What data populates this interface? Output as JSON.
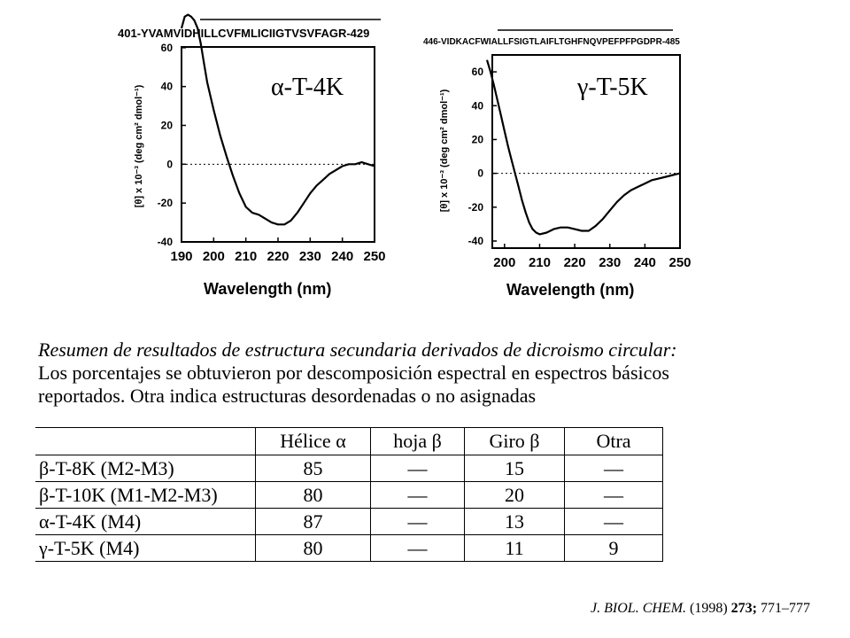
{
  "chart_data": [
    {
      "type": "line",
      "sequence": "401-YVAMVIDHILLCVFMLICIIGTVSVFAGR-429",
      "label": "α-T-4K",
      "xlabel": "Wavelength (nm)",
      "ylabel": "[θ] x 10⁻³ (deg cm² dmol⁻¹)",
      "xlim": [
        190,
        250
      ],
      "ylim": [
        -40,
        80
      ],
      "xticks": [
        190,
        200,
        210,
        220,
        230,
        240,
        250
      ],
      "yticks": [
        -40,
        -20,
        0,
        20,
        40,
        60
      ],
      "x": [
        190,
        191,
        192,
        193,
        194,
        195,
        196,
        197,
        198,
        200,
        202,
        204,
        206,
        208,
        210,
        212,
        214,
        216,
        218,
        220,
        222,
        224,
        226,
        228,
        230,
        232,
        234,
        236,
        238,
        240,
        242,
        244,
        246,
        248,
        250
      ],
      "y": [
        70,
        76,
        77,
        76,
        74,
        70,
        62,
        52,
        42,
        28,
        15,
        4,
        -6,
        -15,
        -22,
        -25,
        -26,
        -28,
        -30,
        -31,
        -31,
        -29,
        -25,
        -20,
        -15,
        -11,
        -8,
        -5,
        -3,
        -1,
        0,
        0,
        1,
        0,
        -1
      ]
    },
    {
      "type": "line",
      "sequence": "446-VIDKACFWIALLFSIGTLAIFLTGHFNQVPEFPFPGDPR-485",
      "label": "γ-T-5K",
      "xlabel": "Wavelength (nm)",
      "ylabel": "[θ] x 10⁻³ (deg cm² dmol⁻¹)",
      "xlim": [
        195,
        250
      ],
      "ylim": [
        -40,
        70
      ],
      "xticks": [
        200,
        210,
        220,
        230,
        240,
        250
      ],
      "yticks": [
        -40,
        -20,
        0,
        20,
        40,
        60
      ],
      "x": [
        195,
        196,
        197,
        198,
        199,
        200,
        201,
        202,
        203,
        204,
        205,
        206,
        207,
        208,
        209,
        210,
        212,
        214,
        216,
        218,
        220,
        222,
        224,
        226,
        228,
        230,
        232,
        234,
        236,
        238,
        240,
        242,
        244,
        246,
        248,
        250
      ],
      "y": [
        67,
        60,
        52,
        43,
        34,
        25,
        16,
        8,
        0,
        -8,
        -16,
        -23,
        -29,
        -33,
        -35,
        -36,
        -35,
        -33,
        -32,
        -32,
        -33,
        -34,
        -34,
        -31,
        -27,
        -22,
        -17,
        -13,
        -10,
        -8,
        -6,
        -4,
        -3,
        -2,
        -1,
        0
      ]
    }
  ],
  "summary": {
    "line1": "Resumen de resultados de estructura secundaria derivados de dicroismo circular:",
    "line2": "Los porcentajes se obtuvieron por descomposición espectral en espectros básicos",
    "line3": "reportados. Otra indica estructuras desordenadas o no asignadas"
  },
  "table": {
    "headers": [
      "Hélice α",
      "hoja β",
      "Giro β",
      "Otra"
    ],
    "rows": [
      {
        "name": "β-T-8K (M2-M3)",
        "values": [
          "85",
          "—",
          "15",
          "—"
        ]
      },
      {
        "name": "β-T-10K (M1-M2-M3)",
        "values": [
          "80",
          "—",
          "20",
          "—"
        ]
      },
      {
        "name": "α-T-4K (M4)",
        "values": [
          "87",
          "—",
          "13",
          "—"
        ]
      },
      {
        "name": "γ-T-5K (M4)",
        "values": [
          "80",
          "—",
          "11",
          "9"
        ]
      }
    ]
  },
  "citation": {
    "journal": "J. BIOL. CHEM.",
    "year": "(1998)",
    "volume": "273;",
    "pages": "771–777"
  }
}
